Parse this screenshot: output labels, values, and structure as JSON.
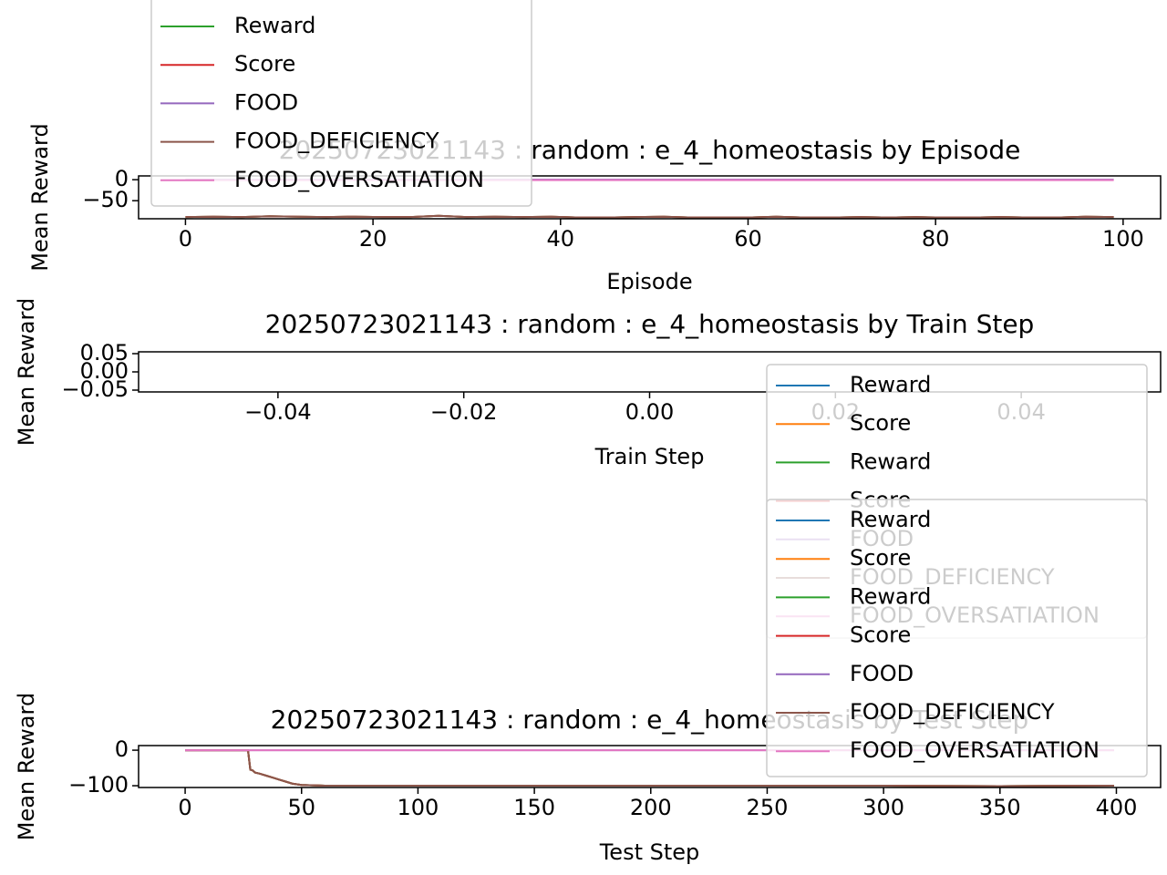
{
  "chart_data": [
    {
      "type": "line",
      "title": "20250723021143 : random : e_4_homeostasis by Episode",
      "xlabel": "Episode",
      "ylabel": "Mean Reward",
      "x": [
        0,
        3,
        6,
        9,
        12,
        15,
        18,
        21,
        24,
        27,
        30,
        33,
        36,
        39,
        42,
        45,
        48,
        51,
        54,
        57,
        60,
        63,
        66,
        69,
        72,
        75,
        78,
        81,
        84,
        87,
        90,
        93,
        96,
        99
      ],
      "xlim": [
        -5,
        104
      ],
      "xticks": [
        0,
        20,
        40,
        60,
        80,
        100
      ],
      "ylim": [
        -93,
        9
      ],
      "yticks": [
        0,
        {
          "value": -50,
          "label": "−50"
        }
      ],
      "series": [
        {
          "name": "Reward",
          "color": "#2ca02c",
          "values": [
            -89,
            -88,
            -89,
            -87,
            -88,
            -89,
            -88,
            -89,
            -89,
            -86,
            -89,
            -88,
            -89,
            -88,
            -90,
            -90,
            -89,
            -88,
            -90,
            -90,
            -90,
            -88,
            -90,
            -90,
            -89,
            -90,
            -89,
            -90,
            -90,
            -89,
            -90,
            -90,
            -88,
            -89
          ]
        },
        {
          "name": "Score",
          "color": "#d62728",
          "values": [
            -89,
            -88,
            -89,
            -87,
            -88,
            -89,
            -88,
            -89,
            -89,
            -86,
            -89,
            -88,
            -89,
            -88,
            -90,
            -90,
            -89,
            -88,
            -90,
            -90,
            -90,
            -88,
            -90,
            -90,
            -89,
            -90,
            -89,
            -90,
            -90,
            -89,
            -90,
            -90,
            -88,
            -89
          ]
        },
        {
          "name": "FOOD",
          "color": "#9467bd",
          "values": [
            0,
            0,
            0,
            0,
            0,
            0,
            0,
            0,
            0,
            0,
            0,
            0,
            0,
            0,
            0,
            0,
            0,
            0,
            0,
            0,
            0,
            0,
            0,
            0,
            0,
            0,
            0,
            0,
            0,
            0,
            0,
            0,
            0,
            0
          ]
        },
        {
          "name": "FOOD_DEFICIENCY",
          "color": "#8c564b",
          "values": [
            -89,
            -88,
            -89,
            -87,
            -88,
            -89,
            -88,
            -89,
            -89,
            -86,
            -89,
            -88,
            -89,
            -88,
            -90,
            -90,
            -89,
            -88,
            -90,
            -90,
            -90,
            -88,
            -90,
            -90,
            -89,
            -90,
            -89,
            -90,
            -90,
            -89,
            -90,
            -90,
            -88,
            -89
          ]
        },
        {
          "name": "FOOD_OVERSATIATION",
          "color": "#e377c2",
          "values": [
            -1,
            -1,
            -1,
            -1,
            -1,
            -1,
            -1,
            -1,
            -1,
            -1,
            -1,
            -1,
            -1,
            -1,
            -1,
            -1,
            -1,
            -1,
            -1,
            -1,
            -1,
            -1,
            -1,
            -1,
            -1,
            -1,
            -1,
            -1,
            -1,
            -1,
            -1,
            -1,
            -1,
            -1
          ]
        }
      ]
    },
    {
      "type": "line",
      "title": "20250723021143 : random : e_4_homeostasis by Train Step",
      "xlabel": "Train Step",
      "ylabel": "Mean Reward",
      "x": [],
      "xlim": [
        -0.055,
        0.055
      ],
      "xticks": [
        {
          "value": -0.04,
          "label": "−0.04"
        },
        {
          "value": -0.02,
          "label": "−0.02"
        },
        {
          "value": 0,
          "label": "0.00"
        },
        {
          "value": 0.02,
          "label": "0.02"
        },
        {
          "value": 0.04,
          "label": "0.04"
        }
      ],
      "ylim": [
        -0.055,
        0.055
      ],
      "yticks": [
        {
          "value": -0.05,
          "label": "−0.05"
        },
        {
          "value": 0,
          "label": "0.00"
        },
        0.05
      ],
      "series": [
        {
          "name": "Reward",
          "color": "#1f77b4",
          "values": []
        },
        {
          "name": "Score",
          "color": "#ff7f0e",
          "values": []
        },
        {
          "name": "Reward",
          "color": "#2ca02c",
          "values": []
        },
        {
          "name": "Score",
          "color": "#d62728",
          "values": []
        },
        {
          "name": "FOOD",
          "color": "#9467bd",
          "values": []
        },
        {
          "name": "FOOD_DEFICIENCY",
          "color": "#8c564b",
          "values": []
        },
        {
          "name": "FOOD_OVERSATIATION",
          "color": "#e377c2",
          "values": []
        }
      ]
    },
    {
      "type": "line",
      "title": "20250723021143 : random : e_4_homeostasis by Test Step",
      "xlabel": "Test Step",
      "ylabel": "Mean Reward",
      "x": [
        0,
        10,
        20,
        27,
        28,
        29,
        30,
        32,
        35,
        38,
        40,
        43,
        46,
        50,
        60,
        100,
        150,
        200,
        250,
        300,
        350,
        399
      ],
      "xlim": [
        -20,
        419
      ],
      "xticks": [
        0,
        50,
        100,
        150,
        200,
        250,
        300,
        350,
        400
      ],
      "ylim": [
        -105,
        13
      ],
      "yticks": [
        0,
        {
          "value": -100,
          "label": "−100"
        }
      ],
      "series": [
        {
          "name": "Reward",
          "color": "#1f77b4",
          "values": [
            0,
            0,
            0,
            0,
            -55,
            -57,
            -63,
            -66,
            -72,
            -78,
            -82,
            -88,
            -94,
            -98,
            -100,
            -100,
            -100,
            -100,
            -100,
            -100,
            -101,
            -100
          ]
        },
        {
          "name": "Score",
          "color": "#ff7f0e",
          "values": [
            0,
            0,
            0,
            0,
            -55,
            -57,
            -63,
            -66,
            -72,
            -78,
            -82,
            -88,
            -94,
            -98,
            -100,
            -100,
            -100,
            -100,
            -100,
            -100,
            -101,
            -100
          ]
        },
        {
          "name": "Reward",
          "color": "#2ca02c",
          "values": [
            0,
            0,
            0,
            0,
            -55,
            -57,
            -63,
            -66,
            -72,
            -78,
            -82,
            -88,
            -94,
            -98,
            -100,
            -100,
            -100,
            -100,
            -100,
            -100,
            -101,
            -100
          ]
        },
        {
          "name": "Score",
          "color": "#d62728",
          "values": [
            0,
            0,
            0,
            0,
            -55,
            -57,
            -63,
            -66,
            -72,
            -78,
            -82,
            -88,
            -94,
            -98,
            -100,
            -100,
            -100,
            -100,
            -100,
            -100,
            -101,
            -100
          ]
        },
        {
          "name": "FOOD",
          "color": "#9467bd",
          "values": [
            0,
            0,
            0,
            0,
            0,
            0,
            0,
            0,
            0,
            0,
            0,
            0,
            0,
            0,
            0,
            0,
            0,
            0,
            0,
            0,
            0,
            0
          ]
        },
        {
          "name": "FOOD_DEFICIENCY",
          "color": "#8c564b",
          "values": [
            0,
            0,
            0,
            0,
            -55,
            -57,
            -63,
            -66,
            -72,
            -78,
            -82,
            -88,
            -94,
            -98,
            -100,
            -100,
            -100,
            -100,
            -100,
            -100,
            -101,
            -100
          ]
        },
        {
          "name": "FOOD_OVERSATIATION",
          "color": "#e377c2",
          "values": [
            0,
            0,
            0,
            0,
            0,
            0,
            0,
            0,
            0,
            0,
            0,
            0,
            0,
            0,
            0,
            0,
            0,
            0,
            0,
            0,
            0,
            0
          ]
        }
      ]
    }
  ]
}
